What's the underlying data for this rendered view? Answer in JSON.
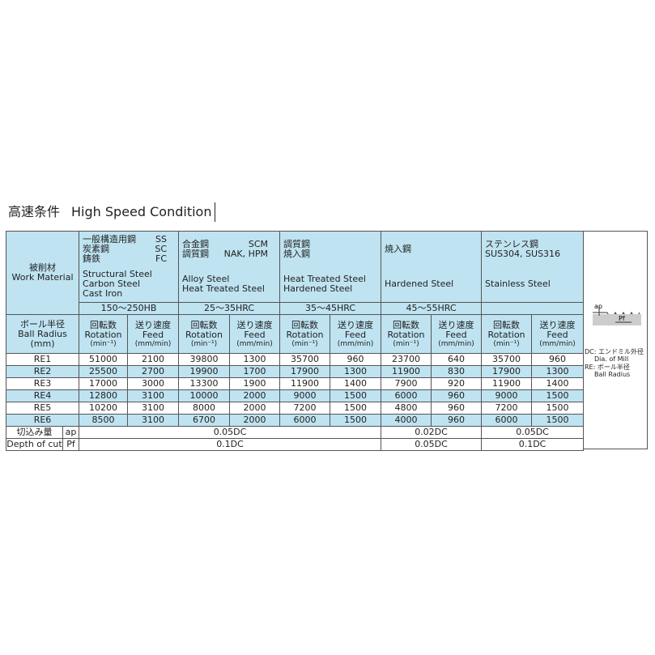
{
  "title": {
    "ja": "高速条件",
    "en": "High Speed Condition"
  },
  "table": {
    "work_material_label": {
      "ja": "被削材",
      "en": "Work Material"
    },
    "materials": [
      {
        "ja_lines": [
          [
            "一般構造用鋼",
            "SS"
          ],
          [
            "炭素鋼",
            "SC"
          ],
          [
            "鋳鉄",
            "FC"
          ]
        ],
        "en_lines": [
          "Structural Steel",
          "Carbon Steel",
          "Cast Iron"
        ],
        "hardness": "150～250HB"
      },
      {
        "ja_lines": [
          [
            "合金鋼",
            "SCM"
          ],
          [
            "調質鋼",
            "NAK, HPM"
          ]
        ],
        "en_lines": [
          "Alloy Steel",
          "Heat Treated Steel"
        ],
        "hardness": "25～35HRC"
      },
      {
        "ja_lines": [
          [
            "調質鋼"
          ],
          [
            "焼入鋼"
          ]
        ],
        "en_lines": [
          "Heat Treated Steel",
          "Hardened Steel"
        ],
        "hardness": "35～45HRC"
      },
      {
        "ja_lines": [
          [
            "焼入鋼"
          ]
        ],
        "en_lines": [
          "Hardened Steel"
        ],
        "hardness": "45～55HRC"
      },
      {
        "ja_lines": [
          [
            "ステンレス鋼"
          ],
          [
            "SUS304, SUS316"
          ]
        ],
        "en_lines": [
          "Stainless Steel"
        ]
      }
    ],
    "ball_radius_label": [
      "ボール半径",
      "Ball Radius",
      "(mm)"
    ],
    "rotation_label": {
      "ja": "回転数",
      "en": "Rotation",
      "unit": "(min⁻¹)"
    },
    "feed_label": {
      "ja": "送り速度",
      "en": "Feed",
      "unit": "(mm/min)"
    },
    "rows": [
      {
        "radius": "RE1",
        "values": [
          51000,
          2100,
          39800,
          1300,
          35700,
          960,
          23700,
          640,
          35700,
          960
        ]
      },
      {
        "radius": "RE2",
        "values": [
          25500,
          2700,
          19900,
          1700,
          17900,
          1300,
          11900,
          830,
          17900,
          1300
        ]
      },
      {
        "radius": "RE3",
        "values": [
          17000,
          3000,
          13300,
          1900,
          11900,
          1400,
          7900,
          920,
          11900,
          1400
        ]
      },
      {
        "radius": "RE4",
        "values": [
          12800,
          3100,
          10000,
          2000,
          9000,
          1500,
          6000,
          960,
          9000,
          1500
        ]
      },
      {
        "radius": "RE5",
        "values": [
          10200,
          3100,
          8000,
          2000,
          7200,
          1500,
          4800,
          960,
          7200,
          1500
        ]
      },
      {
        "radius": "RE6",
        "values": [
          8500,
          3100,
          6700,
          2000,
          6000,
          1500,
          4000,
          960,
          6000,
          1500
        ]
      }
    ],
    "depth_of_cut": [
      {
        "label": "切込み量",
        "symbol": "ap",
        "values": [
          "0.05DC",
          "0.02DC",
          "0.05DC"
        ]
      },
      {
        "label": "Depth of cut",
        "symbol": "Pf",
        "values": [
          "0.1DC",
          "0.05DC",
          "0.1DC"
        ]
      }
    ]
  },
  "side": {
    "diagram": {
      "ap": "ap",
      "pf": "Pf"
    },
    "notes": [
      "DC: エンドミル外径",
      "Dia. of Mill",
      "RE: ボール半径",
      "Ball Radius"
    ]
  }
}
